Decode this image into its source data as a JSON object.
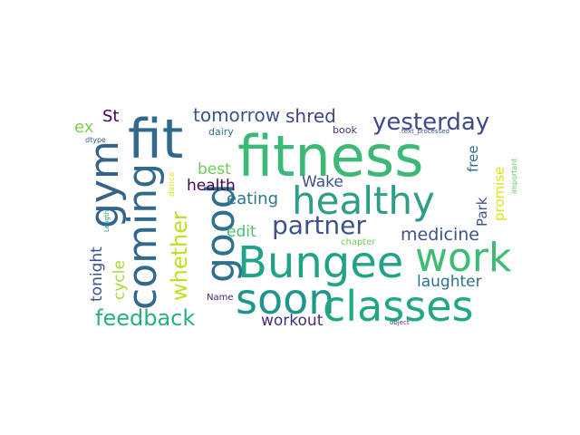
{
  "words": [
    {
      "id": "fitness",
      "text": "fitness",
      "color": "#3aba76"
    },
    {
      "id": "healthy",
      "text": "healthy",
      "color": "#2e9e86"
    },
    {
      "id": "Bungee",
      "text": "Bungee",
      "color": "#20a386"
    },
    {
      "id": "soon",
      "text": "soon",
      "color": "#1f968b"
    },
    {
      "id": "classes",
      "text": "classes",
      "color": "#22a785"
    },
    {
      "id": "work",
      "text": "work",
      "color": "#3fbc73"
    },
    {
      "id": "fit",
      "text": "fit",
      "color": "#31688e"
    },
    {
      "id": "coming",
      "text": "coming",
      "color": "#31688e"
    },
    {
      "id": "gym",
      "text": "gym",
      "color": "#33638d"
    },
    {
      "id": "good",
      "text": "good",
      "color": "#2d718e"
    },
    {
      "id": "partner",
      "text": "partner",
      "color": "#3b528b"
    },
    {
      "id": "yesterday",
      "text": "yesterday",
      "color": "#3e4a89"
    },
    {
      "id": "feedback",
      "text": "feedback",
      "color": "#29af7f"
    },
    {
      "id": "whether",
      "text": "whether",
      "color": "#c2df23"
    },
    {
      "id": "tomorrow",
      "text": "tomorrow",
      "color": "#39568c"
    },
    {
      "id": "shred",
      "text": "shred",
      "color": "#414487"
    },
    {
      "id": "medicine",
      "text": "medicine",
      "color": "#3b528b"
    },
    {
      "id": "laughter",
      "text": "laughter",
      "color": "#2c728e"
    },
    {
      "id": "workout",
      "text": "workout",
      "color": "#472d7b"
    },
    {
      "id": "eating",
      "text": "eating",
      "color": "#2a788e"
    },
    {
      "id": "Wake",
      "text": "Wake",
      "color": "#3b528b"
    },
    {
      "id": "edit",
      "text": "edit",
      "color": "#4ac16d"
    },
    {
      "id": "best",
      "text": "best",
      "color": "#6ccd5a"
    },
    {
      "id": "health",
      "text": "health",
      "color": "#440154"
    },
    {
      "id": "tonight",
      "text": "tonight",
      "color": "#3b528b"
    },
    {
      "id": "cycle",
      "text": "cycle",
      "color": "#a5db36"
    },
    {
      "id": "ex",
      "text": "ex",
      "color": "#7ad151"
    },
    {
      "id": "St",
      "text": "St",
      "color": "#440154"
    },
    {
      "id": "Park",
      "text": "Park",
      "color": "#3b528b"
    },
    {
      "id": "free",
      "text": "free",
      "color": "#2f6c8e"
    },
    {
      "id": "promise",
      "text": "promise",
      "color": "#dde318"
    },
    {
      "id": "book",
      "text": "book",
      "color": "#46327e"
    },
    {
      "id": "dairy",
      "text": "dairy",
      "color": "#2c728e"
    },
    {
      "id": "chapter",
      "text": "chapter",
      "color": "#6ece58"
    },
    {
      "id": "Name",
      "text": "Name",
      "color": "#482475"
    },
    {
      "id": "dtype",
      "text": "dtype",
      "color": "#365c8d"
    },
    {
      "id": "Length",
      "text": "Length",
      "color": "#1f9e89"
    },
    {
      "id": "dance",
      "text": "dance",
      "color": "#dde318"
    },
    {
      "id": "text_processed",
      "text": "text_processed",
      "color": "#3b528b"
    },
    {
      "id": "important",
      "text": "important",
      "color": "#5ec962"
    },
    {
      "id": "object",
      "text": "object",
      "color": "#46327e"
    }
  ]
}
